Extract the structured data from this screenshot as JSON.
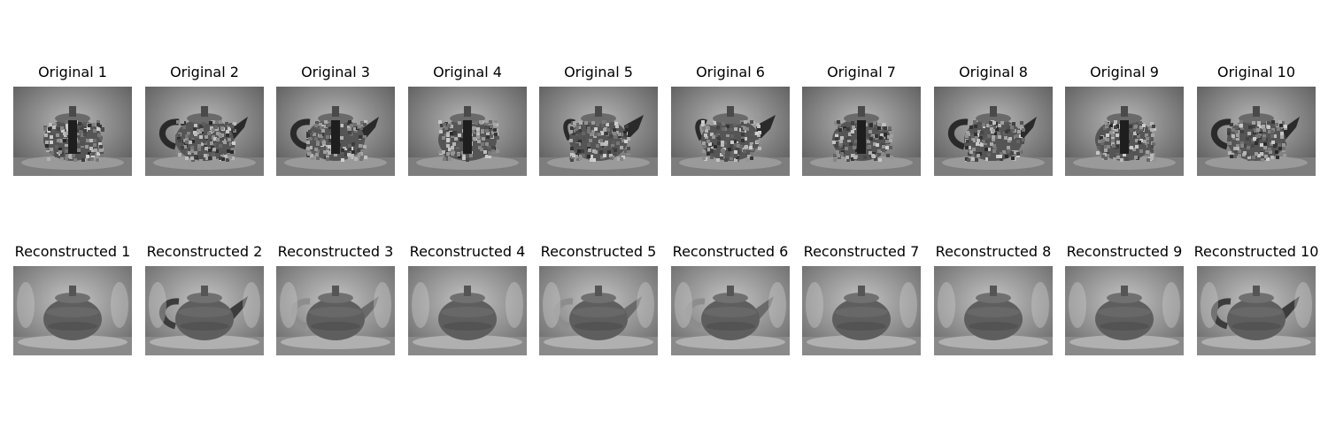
{
  "rows": [
    {
      "kind": "original",
      "titles": [
        "Original 1",
        "Original 2",
        "Original 3",
        "Original 4",
        "Original 5",
        "Original 6",
        "Original 7",
        "Original 8",
        "Original 9",
        "Original 10"
      ],
      "handle": [
        null,
        "left",
        "left-dark",
        null,
        "right",
        "right",
        null,
        "left",
        null,
        "left"
      ]
    },
    {
      "kind": "reconstructed",
      "titles": [
        "Reconstructed 1",
        "Reconstructed 2",
        "Reconstructed 3",
        "Reconstructed 4",
        "Reconstructed 5",
        "Reconstructed 6",
        "Reconstructed 7",
        "Reconstructed 8",
        "Reconstructed 9",
        "Reconstructed 10"
      ],
      "handle": [
        null,
        "left",
        "left-faint",
        null,
        "left-faint",
        "left-faint",
        null,
        null,
        null,
        "left"
      ]
    }
  ],
  "image_description": "grayscale teapot images, original (noisy) vs reconstructed (smooth)"
}
